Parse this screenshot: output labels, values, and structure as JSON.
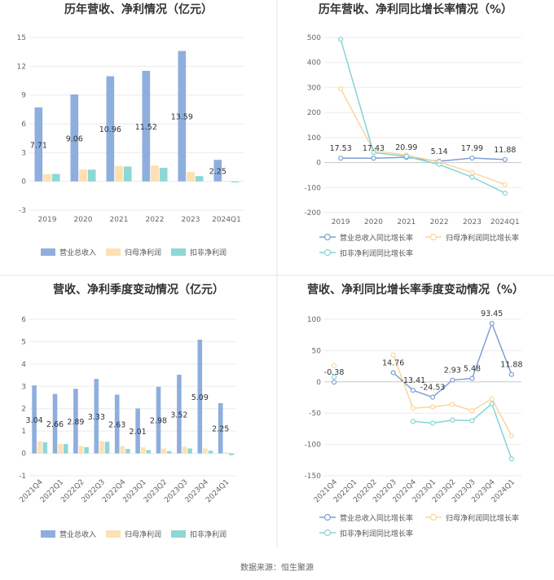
{
  "source_text": "数据来源：恒生聚源",
  "colors": {
    "revenue": "#8eaedd",
    "parent": "#fde0b3",
    "deducted": "#8dd7d6",
    "rev_line": "#7f9fd3",
    "par_line": "#fbd69c",
    "ded_line": "#84d4d7"
  },
  "chart_data": [
    {
      "type": "bar",
      "title": "历年营收、净利情况（亿元）",
      "categories": [
        "2019",
        "2020",
        "2021",
        "2022",
        "2023",
        "2024Q1"
      ],
      "ylim": [
        -3,
        15
      ],
      "yticks": [
        "-3",
        "0",
        "3",
        "6",
        "9",
        "12",
        "15"
      ],
      "series": [
        {
          "name": "营业总收入",
          "values": [
            7.71,
            9.06,
            10.96,
            11.52,
            13.59,
            2.25
          ]
        },
        {
          "name": "归母净利润",
          "values": [
            0.75,
            1.25,
            1.62,
            1.65,
            0.98,
            0.05
          ]
        },
        {
          "name": "扣非净利润",
          "values": [
            0.78,
            1.22,
            1.55,
            1.42,
            0.55,
            -0.1
          ]
        }
      ],
      "data_labels": [
        "7.71",
        "9.06",
        "10.96",
        "11.52",
        "13.59",
        "2.25"
      ]
    },
    {
      "type": "line",
      "title": "历年营收、净利同比增长率情况（%）",
      "categories": [
        "2019",
        "2020",
        "2021",
        "2022",
        "2023",
        "2024Q1"
      ],
      "ylim": [
        -200,
        500
      ],
      "yticks": [
        "-200",
        "-100",
        "0",
        "100",
        "200",
        "300",
        "400",
        "500"
      ],
      "series": [
        {
          "name": "营业总收入同比增长率",
          "values": [
            17.53,
            17.43,
            20.99,
            5.14,
            17.99,
            11.88
          ]
        },
        {
          "name": "归母净利润同比增长率",
          "values": [
            295,
            48,
            30,
            2,
            -40,
            -88
          ]
        },
        {
          "name": "扣非净利润同比增长率",
          "values": [
            493,
            40,
            25,
            -8,
            -58,
            -122
          ]
        }
      ],
      "data_labels": [
        "17.53",
        "17.43",
        "20.99",
        "5.14",
        "17.99",
        "11.88"
      ]
    },
    {
      "type": "bar",
      "title": "营收、净利季度变动情况（亿元）",
      "categories": [
        "2021Q4",
        "2022Q1",
        "2022Q2",
        "2022Q3",
        "2022Q4",
        "2023Q1",
        "2023Q2",
        "2023Q3",
        "2023Q4",
        "2024Q1"
      ],
      "ylim": [
        -1,
        6
      ],
      "yticks": [
        "-1",
        "0",
        "1",
        "2",
        "3",
        "4",
        "5",
        "6"
      ],
      "series": [
        {
          "name": "营业总收入",
          "values": [
            3.04,
            2.66,
            2.89,
            3.33,
            2.63,
            2.01,
            2.98,
            3.52,
            5.09,
            2.25
          ]
        },
        {
          "name": "归母净利润",
          "values": [
            0.55,
            0.43,
            0.33,
            0.55,
            0.32,
            0.27,
            0.22,
            0.3,
            0.22,
            0.05
          ]
        },
        {
          "name": "扣非净利润",
          "values": [
            0.5,
            0.42,
            0.28,
            0.52,
            0.2,
            0.15,
            0.1,
            0.22,
            0.12,
            -0.08
          ]
        }
      ],
      "data_labels": [
        "3.04",
        "2.66",
        "2.89",
        "3.33",
        "2.63",
        "2.01",
        "2.98",
        "3.52",
        "5.09",
        "2.25"
      ]
    },
    {
      "type": "line",
      "title": "营收、净利同比增长率季度变动情况（%）",
      "categories": [
        "2021Q4",
        "2022Q1",
        "2022Q2",
        "2022Q3",
        "2022Q4",
        "2023Q1",
        "2023Q2",
        "2023Q3",
        "2023Q4",
        "2024Q1"
      ],
      "ylim": [
        -150,
        100
      ],
      "yticks": [
        "-150",
        "-100",
        "-50",
        "0",
        "50",
        "100"
      ],
      "series": [
        {
          "name": "营业总收入同比增长率",
          "values": [
            -0.38,
            null,
            null,
            14.76,
            -13.41,
            -24.53,
            2.93,
            5.48,
            93.45,
            11.88
          ]
        },
        {
          "name": "归母净利润同比增长率",
          "values": [
            26,
            null,
            null,
            43,
            -42,
            -40,
            -36,
            -46,
            -27,
            -86
          ]
        },
        {
          "name": "扣非净利润同比增长率",
          "values": [
            8,
            null,
            null,
            null,
            -63,
            -66,
            -61,
            -62,
            -35,
            -123
          ]
        }
      ],
      "data_labels": [
        "-0.38",
        "",
        "",
        "14.76",
        "-13.41",
        "-24.53",
        "2.93",
        "5.48",
        "93.45",
        "11.88"
      ]
    }
  ]
}
